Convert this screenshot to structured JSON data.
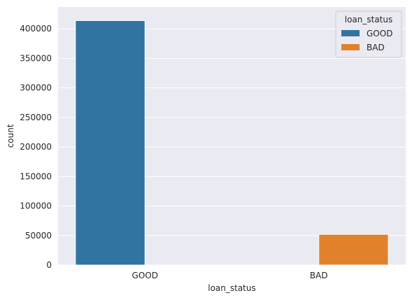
{
  "chart_data": {
    "type": "bar",
    "categories": [
      "GOOD",
      "BAD"
    ],
    "series": [
      {
        "name": "GOOD",
        "values": [
          414000,
          0
        ]
      },
      {
        "name": "BAD",
        "values": [
          0,
          52000
        ]
      }
    ],
    "xlabel": "loan_status",
    "ylabel": "count",
    "ylim": [
      0,
      437000
    ],
    "yticks": [
      0,
      50000,
      100000,
      150000,
      200000,
      250000,
      300000,
      350000,
      400000
    ],
    "grid": true,
    "legend": {
      "title": "loan_status",
      "placement": "top-right",
      "entries": [
        "GOOD",
        "BAD"
      ]
    },
    "colors": {
      "GOOD": "#3274a1",
      "BAD": "#e1812c",
      "background": "#eaeaf2",
      "grid": "#ffffff"
    }
  }
}
